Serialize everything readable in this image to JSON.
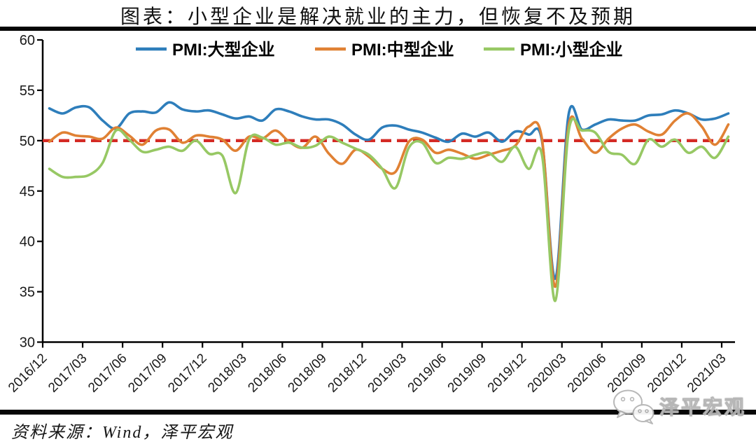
{
  "title": "图表：小型企业是解决就业的主力，但恢复不及预期",
  "source": {
    "text": "资料来源：Wind，泽平宏观"
  },
  "watermark": {
    "text": "泽平宏观",
    "icon": "wechat-icon"
  },
  "chart_data": {
    "type": "line",
    "smooth": true,
    "grid": false,
    "legend_position": "top",
    "ylim": [
      30,
      60
    ],
    "yticks": [
      30,
      35,
      40,
      45,
      50,
      55,
      60
    ],
    "reference_line": {
      "value": 50,
      "color": "#D42A25",
      "style": "dashed"
    },
    "x": [
      "2016/12",
      "2017/01",
      "2017/02",
      "2017/03",
      "2017/04",
      "2017/05",
      "2017/06",
      "2017/07",
      "2017/08",
      "2017/09",
      "2017/10",
      "2017/11",
      "2017/12",
      "2018/01",
      "2018/02",
      "2018/03",
      "2018/04",
      "2018/05",
      "2018/06",
      "2018/07",
      "2018/08",
      "2018/09",
      "2018/10",
      "2018/11",
      "2018/12",
      "2019/01",
      "2019/02",
      "2019/03",
      "2019/04",
      "2019/05",
      "2019/06",
      "2019/07",
      "2019/08",
      "2019/09",
      "2019/10",
      "2019/11",
      "2019/12",
      "2020/01",
      "2020/02",
      "2020/03",
      "2020/04",
      "2020/05",
      "2020/06",
      "2020/07",
      "2020/08",
      "2020/09",
      "2020/10",
      "2020/11",
      "2020/12",
      "2021/01",
      "2021/02",
      "2021/03"
    ],
    "x_tick_labels": [
      "2016/12",
      "2017/03",
      "2017/06",
      "2017/09",
      "2017/12",
      "2018/03",
      "2018/06",
      "2018/09",
      "2018/12",
      "2019/03",
      "2019/06",
      "2019/09",
      "2019/12",
      "2020/03",
      "2020/06",
      "2020/09",
      "2020/12",
      "2021/03"
    ],
    "x_tick_every": 3,
    "series": [
      {
        "name": "PMI:大型企业",
        "color": "#2E7EBB",
        "values": [
          53.2,
          52.7,
          53.3,
          53.3,
          52.0,
          51.2,
          52.7,
          52.9,
          52.8,
          53.8,
          53.1,
          52.9,
          53.0,
          52.6,
          52.2,
          52.4,
          52.0,
          53.1,
          52.9,
          52.4,
          52.1,
          52.1,
          51.6,
          50.6,
          50.1,
          51.3,
          51.5,
          51.1,
          50.8,
          50.3,
          49.9,
          50.7,
          50.4,
          50.8,
          49.9,
          50.9,
          50.6,
          50.0,
          36.3,
          52.6,
          51.1,
          51.6,
          52.1,
          52.0,
          52.0,
          52.5,
          52.6,
          53.0,
          52.7,
          52.1,
          52.2,
          52.7
        ]
      },
      {
        "name": "PMI:中型企业",
        "color": "#E08134",
        "values": [
          49.9,
          50.8,
          50.5,
          50.4,
          50.2,
          51.3,
          50.5,
          49.6,
          51.0,
          51.1,
          49.8,
          50.5,
          50.4,
          50.1,
          49.0,
          50.4,
          50.2,
          51.0,
          49.9,
          49.3,
          50.4,
          48.7,
          47.7,
          49.1,
          48.4,
          47.2,
          46.9,
          49.9,
          50.1,
          48.8,
          49.1,
          48.7,
          48.2,
          48.6,
          49.0,
          49.5,
          51.4,
          50.2,
          35.5,
          51.5,
          50.2,
          48.8,
          50.2,
          51.2,
          51.6,
          50.9,
          50.6,
          52.0,
          52.7,
          51.4,
          49.6,
          51.6
        ]
      },
      {
        "name": "PMI:小型企业",
        "color": "#97C864",
        "values": [
          47.2,
          46.4,
          46.4,
          46.6,
          47.8,
          51.0,
          50.1,
          48.9,
          49.1,
          49.4,
          49.0,
          50.0,
          48.7,
          48.5,
          44.8,
          50.1,
          50.3,
          49.6,
          49.8,
          49.3,
          49.5,
          50.4,
          49.8,
          49.2,
          48.6,
          47.2,
          45.3,
          49.3,
          49.8,
          47.8,
          48.3,
          48.2,
          48.6,
          48.8,
          47.9,
          49.4,
          47.2,
          48.6,
          34.1,
          50.9,
          51.0,
          50.8,
          48.9,
          48.6,
          47.7,
          50.1,
          49.4,
          50.1,
          48.8,
          49.4,
          48.3,
          50.4
        ]
      }
    ]
  }
}
